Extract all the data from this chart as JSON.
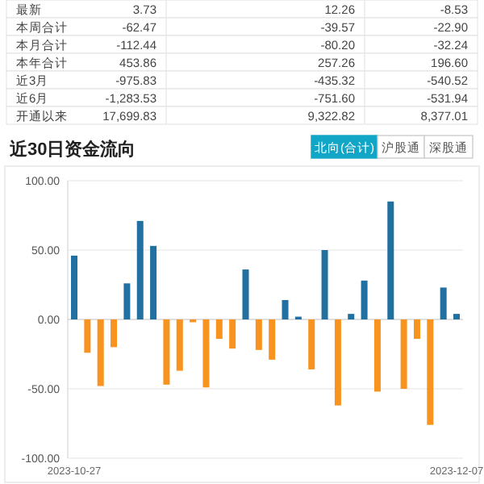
{
  "chart_data": {
    "type": "bar",
    "title": "近30日资金流向",
    "annotations": [
      "最新",
      "3.73",
      "12.26",
      "-8.53",
      "本周合计",
      "-62.47",
      "-39.57",
      "-22.90",
      "本月合计",
      "-112.44",
      "-80.20",
      "-32.24",
      "本年合计",
      "453.86",
      "257.26",
      "196.60",
      "近3月",
      "-975.83",
      "-435.32",
      "-540.52",
      "近6月",
      "-1,283.53",
      "-751.60",
      "-531.94",
      "开通以来",
      "17,699.83",
      "9,322.82",
      "8,377.01",
      "北向(合计)",
      "沪股通",
      "深股通"
    ],
    "categories": [
      "2023-10-27",
      null,
      null,
      null,
      null,
      null,
      null,
      null,
      null,
      null,
      null,
      null,
      null,
      null,
      null,
      null,
      null,
      null,
      null,
      null,
      null,
      null,
      null,
      null,
      null,
      null,
      null,
      null,
      null,
      "2023-12-07"
    ],
    "values": [
      46,
      -24,
      -48,
      -20,
      26,
      71,
      53,
      -47,
      -37,
      -2,
      -49,
      -14,
      -21,
      36,
      -22,
      -29,
      14,
      2,
      -36,
      50,
      -62,
      4,
      28,
      -52,
      85,
      -50,
      -14,
      -76,
      23,
      4
    ],
    "colors": [
      "#21709f",
      "#f7931e",
      "#f7931e",
      "#f7931e",
      "#21709f",
      "#21709f",
      "#21709f",
      "#f7931e",
      "#f7931e",
      "#f7931e",
      "#f7931e",
      "#f7931e",
      "#f7931e",
      "#21709f",
      "#f7931e",
      "#f7931e",
      "#21709f",
      "#21709f",
      "#f7931e",
      "#21709f",
      "#f7931e",
      "#21709f",
      "#21709f",
      "#f7931e",
      "#21709f",
      "#f7931e",
      "#f7931e",
      "#f7931e",
      "#21709f",
      "#21709f"
    ],
    "ylim": [
      -100,
      100
    ],
    "yticks": [
      {
        "value": -100,
        "label": "-100.00"
      },
      {
        "value": -50,
        "label": "-50.00"
      },
      {
        "value": 0,
        "label": "0.00"
      },
      {
        "value": 50,
        "label": "50.00"
      },
      {
        "value": 100,
        "label": "100.00"
      }
    ],
    "grid": "y"
  }
}
